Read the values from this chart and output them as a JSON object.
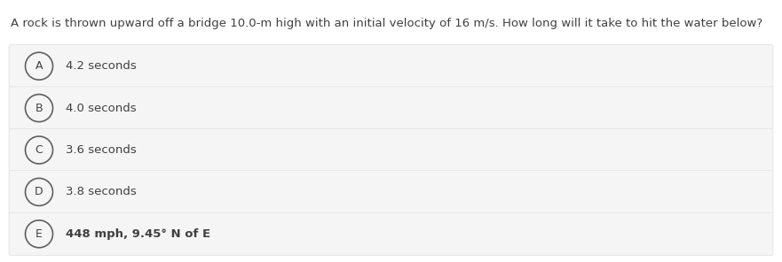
{
  "question": "A rock is thrown upward off a bridge 10.0-m high with an initial velocity of 16 m/s. How long will it take to hit the water below?",
  "options": [
    {
      "label": "A",
      "text": "4.2 seconds",
      "bold": false
    },
    {
      "label": "B",
      "text": "4.0 seconds",
      "bold": false
    },
    {
      "label": "C",
      "text": "3.6 seconds",
      "bold": false
    },
    {
      "label": "D",
      "text": "3.8 seconds",
      "bold": false
    },
    {
      "label": "E",
      "text": "448 mph, 9.45° N of E",
      "bold": true
    }
  ],
  "bg_color": "#ffffff",
  "option_bg_color": "#f5f5f5",
  "option_border_color": "#e0e0e0",
  "text_color": "#404040",
  "circle_edge_color": "#606060",
  "question_fontsize": 9.5,
  "option_fontsize": 9.5,
  "label_fontsize": 9.0,
  "fig_width": 8.81,
  "fig_height": 2.96,
  "dpi": 100
}
